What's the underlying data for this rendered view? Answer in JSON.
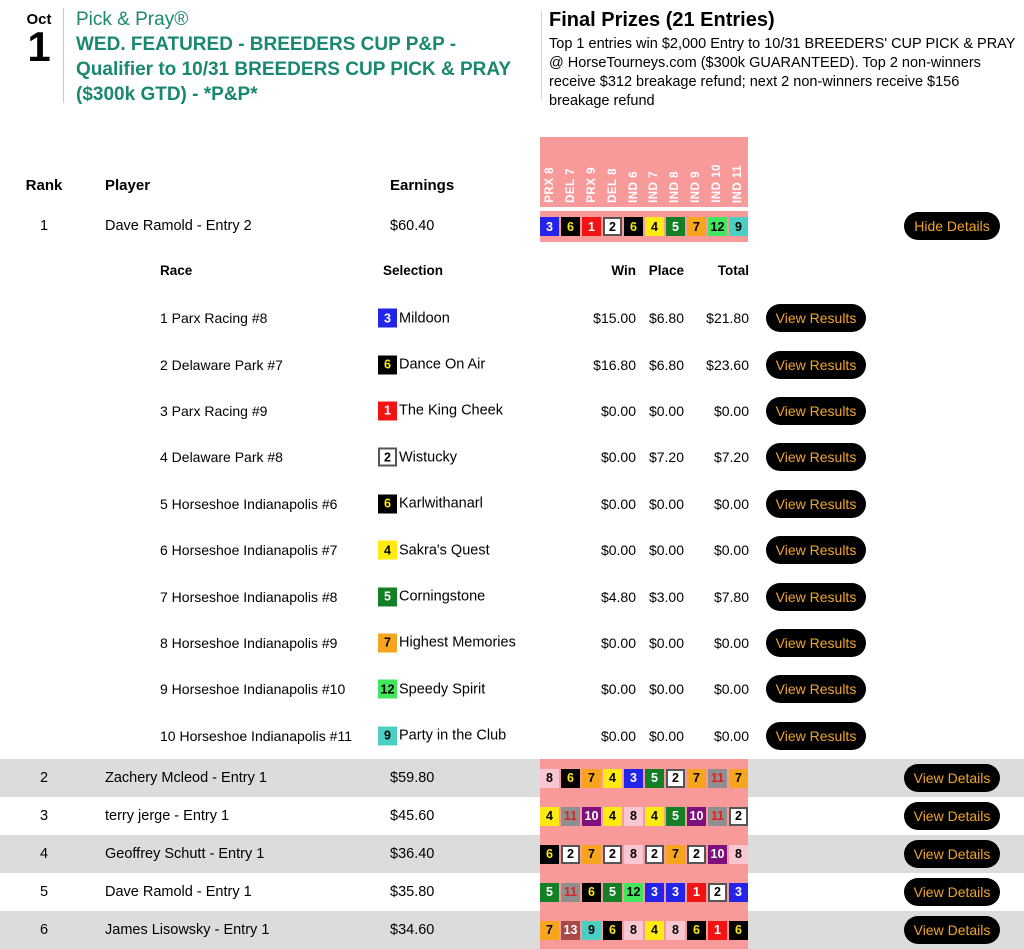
{
  "event": {
    "month": "Oct",
    "day": "1",
    "category": "Pick & Pray®",
    "title": "WED. FEATURED - BREEDERS CUP P&P - Qualifier to 10/31 BREEDERS CUP PICK & PRAY ($300k GTD) - *P&P*"
  },
  "prizes": {
    "heading": "Final Prizes (21 Entries)",
    "body": "Top 1 entries win $2,000 Entry to 10/31 BREEDERS' CUP PICK & PRAY @ HorseTourneys.com ($300k GUARANTEED). Top 2 non-winners receive $312 breakage refund; next 2 non-winners receive $156 breakage refund"
  },
  "columns": {
    "rank": "Rank",
    "player": "Player",
    "earnings": "Earnings"
  },
  "tracks": [
    "PRX 8",
    "DEL 7",
    "PRX 9",
    "DEL 8",
    "IND 6",
    "IND 7",
    "IND 8",
    "IND 9",
    "IND 10",
    "IND 11"
  ],
  "leader": {
    "rank": "1",
    "player": "Dave Ramold - Entry 2",
    "earnings": "$60.40",
    "picks": [
      3,
      6,
      1,
      2,
      6,
      4,
      5,
      7,
      12,
      9
    ],
    "button": "Hide Details"
  },
  "details": {
    "columns": {
      "race": "Race",
      "selection": "Selection",
      "win": "Win",
      "place": "Place",
      "total": "Total"
    },
    "button": "View Results",
    "rows": [
      {
        "race": "1 Parx Racing #8",
        "pick": 3,
        "horse": "Mildoon",
        "win": "$15.00",
        "place": "$6.80",
        "total": "$21.80"
      },
      {
        "race": "2 Delaware Park #7",
        "pick": 6,
        "horse": "Dance On Air",
        "win": "$16.80",
        "place": "$6.80",
        "total": "$23.60"
      },
      {
        "race": "3 Parx Racing #9",
        "pick": 1,
        "horse": "The King Cheek",
        "win": "$0.00",
        "place": "$0.00",
        "total": "$0.00"
      },
      {
        "race": "4 Delaware Park #8",
        "pick": 2,
        "horse": "Wistucky",
        "win": "$0.00",
        "place": "$7.20",
        "total": "$7.20"
      },
      {
        "race": "5 Horseshoe Indianapolis #6",
        "pick": 6,
        "horse": "Karlwithanarl",
        "win": "$0.00",
        "place": "$0.00",
        "total": "$0.00"
      },
      {
        "race": "6 Horseshoe Indianapolis #7",
        "pick": 4,
        "horse": "Sakra's Quest",
        "win": "$0.00",
        "place": "$0.00",
        "total": "$0.00"
      },
      {
        "race": "7 Horseshoe Indianapolis #8",
        "pick": 5,
        "horse": "Corningstone",
        "win": "$4.80",
        "place": "$3.00",
        "total": "$7.80"
      },
      {
        "race": "8 Horseshoe Indianapolis #9",
        "pick": 7,
        "horse": "Highest Memories",
        "win": "$0.00",
        "place": "$0.00",
        "total": "$0.00"
      },
      {
        "race": "9 Horseshoe Indianapolis #10",
        "pick": 12,
        "horse": "Speedy Spirit",
        "win": "$0.00",
        "place": "$0.00",
        "total": "$0.00"
      },
      {
        "race": "10 Horseshoe Indianapolis #11",
        "pick": 9,
        "horse": "Party in the Club",
        "win": "$0.00",
        "place": "$0.00",
        "total": "$0.00"
      }
    ]
  },
  "standings": [
    {
      "rank": "2",
      "player": "Zachery Mcleod - Entry 1",
      "earnings": "$59.80",
      "picks": [
        8,
        6,
        7,
        4,
        3,
        5,
        2,
        7,
        11,
        7
      ],
      "button": "View Details"
    },
    {
      "rank": "3",
      "player": "terry jerge - Entry 1",
      "earnings": "$45.60",
      "picks": [
        4,
        11,
        10,
        4,
        8,
        4,
        5,
        10,
        11,
        2
      ],
      "button": "View Details"
    },
    {
      "rank": "4",
      "player": "Geoffrey Schutt - Entry 1",
      "earnings": "$36.40",
      "picks": [
        6,
        2,
        7,
        2,
        8,
        2,
        7,
        2,
        10,
        8
      ],
      "button": "View Details"
    },
    {
      "rank": "5",
      "player": "Dave Ramold - Entry 1",
      "earnings": "$35.80",
      "picks": [
        5,
        11,
        6,
        5,
        12,
        3,
        3,
        1,
        2,
        3
      ],
      "button": "View Details"
    },
    {
      "rank": "6",
      "player": "James Lisowsky - Entry 1",
      "earnings": "$34.60",
      "picks": [
        7,
        13,
        9,
        6,
        8,
        4,
        8,
        6,
        1,
        6
      ],
      "button": "View Details"
    }
  ],
  "saddle_colors": {
    "1": {
      "bg": "#F21414",
      "fg": "#FFFFFF"
    },
    "2": {
      "bg": "#FFFFFF",
      "fg": "#000000",
      "border": "#555555"
    },
    "3": {
      "bg": "#2424E8",
      "fg": "#FFFFFF"
    },
    "4": {
      "bg": "#FFEB0F",
      "fg": "#000000"
    },
    "5": {
      "bg": "#148026",
      "fg": "#FFFFFF"
    },
    "6": {
      "bg": "#000000",
      "fg": "#FFE70F"
    },
    "7": {
      "bg": "#F7A41F",
      "fg": "#000000"
    },
    "8": {
      "bg": "#F9C7D2",
      "fg": "#000000"
    },
    "9": {
      "bg": "#4CCFC3",
      "fg": "#000000"
    },
    "10": {
      "bg": "#7E107E",
      "fg": "#FFFFFF"
    },
    "11": {
      "bg": "#8F8F8F",
      "fg": "#E02020"
    },
    "12": {
      "bg": "#41E65C",
      "fg": "#000000"
    },
    "13": {
      "bg": "#A64949",
      "fg": "#FFFFFF"
    }
  },
  "theme": {
    "teal": "#1A8870",
    "pink": "#F99A9A",
    "button_bg": "#000000",
    "button_fg": "#F0A42C",
    "row_alt": "#DCDCDC"
  }
}
